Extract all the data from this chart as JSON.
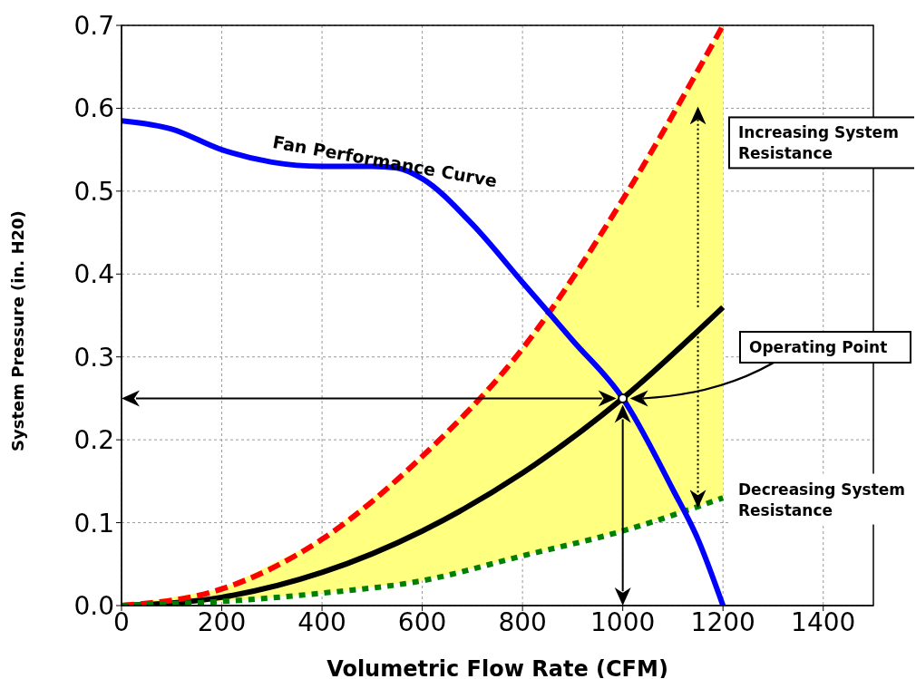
{
  "chart_data": {
    "type": "line",
    "xlabel": "Volumetric Flow Rate (CFM)",
    "ylabel": "System Pressure (in. H20)",
    "xlim": [
      0,
      1500
    ],
    "ylim": [
      0,
      0.7
    ],
    "xticks": [
      0,
      200,
      400,
      600,
      800,
      1000,
      1200,
      1400
    ],
    "yticks": [
      {
        "value": 0,
        "label": "0.0"
      },
      0.1,
      0.2,
      0.3,
      0.4,
      0.5,
      0.6,
      0.7
    ],
    "grid": true,
    "marker": "none",
    "series": [
      {
        "color": "#000000",
        "line_style": "solid",
        "x": [
          0,
          200,
          400,
          600,
          800,
          1000,
          1200
        ],
        "values": [
          0,
          0.01,
          0.04,
          0.09,
          0.16,
          0.25,
          0.36
        ],
        "lower": [
          0,
          0.005,
          0.015,
          0.03,
          0.06,
          0.09,
          0.13
        ],
        "upper": [
          0,
          0.02,
          0.08,
          0.18,
          0.31,
          0.49,
          0.7
        ]
      },
      {
        "color": "#ff0000",
        "line_style": "dashed",
        "x": [
          0,
          200,
          400,
          600,
          800,
          1000,
          1200
        ],
        "values": [
          0,
          0.02,
          0.08,
          0.18,
          0.31,
          0.49,
          0.7
        ]
      },
      {
        "color": "#008000",
        "line_style": "dotted",
        "x": [
          0,
          200,
          400,
          600,
          800,
          1000,
          1200
        ],
        "values": [
          0,
          0.005,
          0.015,
          0.03,
          0.06,
          0.09,
          0.13
        ]
      },
      {
        "name": "Fan Performance Curve",
        "color": "#0000ff",
        "line_style": "solid",
        "x": [
          0,
          100,
          200,
          300,
          400,
          500,
          550,
          600,
          700,
          800,
          900,
          1000,
          1100,
          1150,
          1200
        ],
        "values": [
          0.585,
          0.575,
          0.55,
          0.535,
          0.53,
          0.53,
          0.528,
          0.515,
          0.46,
          0.39,
          0.32,
          0.25,
          0.14,
          0.08,
          0
        ]
      },
      {
        "type": "scatter",
        "marker": "circle",
        "color": "#ffffff",
        "x": [
          1000
        ],
        "values": [
          0.25
        ]
      }
    ],
    "annotations": [
      "Operating Point",
      "Increasing System Resistance",
      "Decreasing System Resistance"
    ]
  }
}
